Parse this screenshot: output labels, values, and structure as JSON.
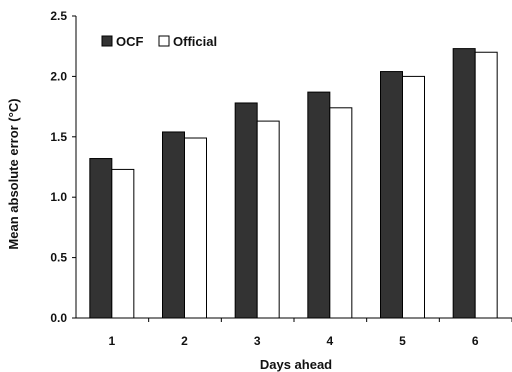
{
  "chart_data": {
    "type": "bar",
    "categories": [
      "1",
      "2",
      "3",
      "4",
      "5",
      "6"
    ],
    "series": [
      {
        "name": "OCF",
        "values": [
          1.32,
          1.54,
          1.78,
          1.87,
          2.04,
          2.23
        ],
        "color": "#333333"
      },
      {
        "name": "Official",
        "values": [
          1.23,
          1.49,
          1.63,
          1.74,
          2.0,
          2.2
        ],
        "color": "#ffffff"
      }
    ],
    "xlabel": "Days ahead",
    "ylabel": "Mean absolute error (°C)",
    "ylim": [
      0,
      2.5
    ],
    "yticks": [
      "0.0",
      "0.5",
      "1.0",
      "1.5",
      "2.0",
      "2.5"
    ],
    "grid": false,
    "legend_position": "top-left"
  }
}
